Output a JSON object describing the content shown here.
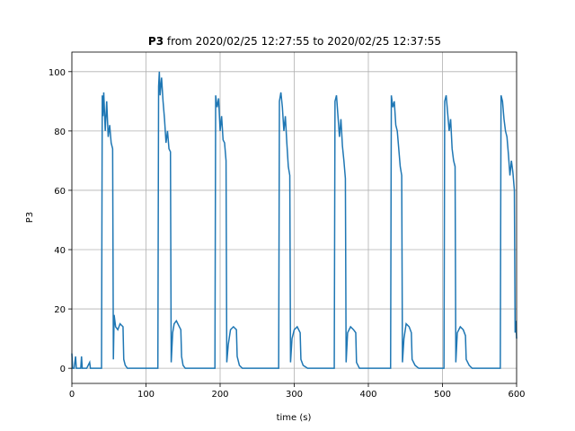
{
  "chart_data": {
    "type": "line",
    "title": {
      "bold": "P3",
      "text": "from 2020/02/25 12:27:55 to 2020/02/25 12:37:55"
    },
    "xlabel": "time (s)",
    "ylabel": "P3",
    "xlim": [
      0,
      600
    ],
    "ylim": [
      -5.1,
      106.6
    ],
    "xticks": [
      0,
      100,
      200,
      300,
      400,
      500,
      600
    ],
    "yticks": [
      0,
      20,
      40,
      60,
      80,
      100
    ],
    "grid": true,
    "series": [
      {
        "color": "#1f77b4",
        "x": [
          0,
          1,
          3,
          5,
          6,
          12,
          13,
          14,
          20,
          24,
          25,
          40,
          41,
          42,
          43,
          45,
          47,
          49,
          51,
          53,
          55,
          56,
          57,
          59,
          62,
          65,
          69,
          70,
          72,
          75,
          116,
          117,
          118,
          119,
          121,
          123,
          125,
          127,
          129,
          131,
          133,
          134,
          136,
          138,
          141,
          145,
          147,
          148,
          150,
          153,
          193,
          194,
          196,
          198,
          200,
          202,
          204,
          206,
          208,
          209,
          211,
          214,
          218,
          222,
          223,
          226,
          230,
          279,
          280,
          282,
          284,
          286,
          288,
          290,
          292,
          294,
          295,
          297,
          300,
          304,
          308,
          309,
          312,
          318,
          354,
          355,
          357,
          359,
          361,
          363,
          365,
          367,
          369,
          370,
          372,
          376,
          380,
          383,
          384,
          388,
          430,
          431,
          433,
          435,
          437,
          439,
          441,
          443,
          445,
          446,
          448,
          451,
          455,
          458,
          459,
          463,
          468,
          502,
          503,
          505,
          507,
          509,
          511,
          513,
          515,
          517,
          518,
          520,
          524,
          528,
          531,
          532,
          536,
          540,
          578,
          579,
          581,
          583,
          585,
          587,
          589,
          591,
          593,
          595,
          597,
          598,
          599,
          600
        ],
        "values": [
          5,
          0,
          0,
          4,
          0,
          0,
          4,
          0,
          0,
          2,
          0,
          0,
          92,
          85,
          93,
          80,
          90,
          78,
          82,
          76,
          74,
          3,
          18,
          14,
          13,
          15,
          14,
          3,
          1,
          0,
          0,
          95,
          100,
          92,
          98,
          90,
          84,
          76,
          80,
          74,
          73,
          2,
          12,
          15,
          16,
          14,
          13,
          4,
          1,
          0,
          0,
          92,
          88,
          91,
          80,
          85,
          77,
          76,
          70,
          2,
          8,
          13,
          14,
          13,
          4,
          1,
          0,
          0,
          90,
          93,
          88,
          80,
          85,
          76,
          68,
          65,
          2,
          10,
          13,
          14,
          12,
          3,
          1,
          0,
          0,
          90,
          92,
          85,
          78,
          84,
          75,
          70,
          64,
          2,
          12,
          14,
          13,
          12,
          2,
          0,
          0,
          92,
          88,
          90,
          82,
          80,
          74,
          68,
          65,
          2,
          10,
          15,
          14,
          12,
          3,
          1,
          0,
          0,
          90,
          92,
          86,
          80,
          84,
          74,
          70,
          68,
          2,
          12,
          14,
          13,
          11,
          3,
          1,
          0,
          0,
          92,
          90,
          84,
          80,
          78,
          72,
          65,
          70,
          66,
          60,
          12,
          16,
          10
        ]
      }
    ]
  }
}
